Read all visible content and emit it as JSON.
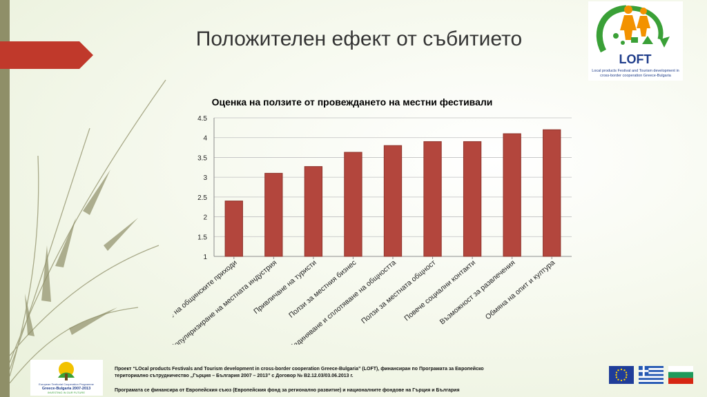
{
  "slide": {
    "title": "Положителен ефект от събитието"
  },
  "logo": {
    "name": "LOFT",
    "caption": "Local products Festival and Tourism development in cross-border cooperation Greece-Bulgaria"
  },
  "colors": {
    "accent": "#c0392b",
    "bar_fill": "#b3463d",
    "bar_stroke": "#8e342c",
    "strip": "#8f8f68"
  },
  "chart_data": {
    "type": "bar",
    "title": "Оценка на ползите от провеждането на местни фестивали",
    "categories": [
      "Увеличаване на общинските приходи",
      "Популяризиране на местната индустрия",
      "Привличане на туристи",
      "Ползи за местния бизнес",
      "Обединяване и сплотяване на общността",
      "Ползи за местната общност",
      "Повече социални контакти",
      "Възможност за развлечения",
      "Обмяна на опит и култура"
    ],
    "values": [
      2.4,
      3.1,
      3.27,
      3.63,
      3.8,
      3.9,
      3.9,
      4.1,
      4.2
    ],
    "ylim": [
      1,
      4.5
    ],
    "yticks": [
      "1",
      "1.5",
      "2",
      "2.5",
      "3",
      "3.5",
      "4",
      "4.5"
    ],
    "grid": true,
    "xlabel": "",
    "ylabel": ""
  },
  "footer": {
    "programme_logo_lines": [
      "European Territorial Cooperation Programme",
      "Greece-Bulgaria 2007-2013",
      "INVESTING IN OUR FUTURE"
    ],
    "line1": "Проект “LOcal products Festivals and Tourism development in cross-border cooperation Greece-Bulgaria” (LOFT), финансиран по Програмата за Европейско",
    "line2": "териториално сътрудничество „Гърция – България 2007 – 2013” с Договор № B2.12.03/03.06.2013 г.",
    "line3": "Програмата се финансира от Европейския съюз (Европейския фонд за регионално развитие) и националните фондове на Гърция и България"
  },
  "flags": [
    "eu-flag-icon",
    "greece-flag-icon",
    "bulgaria-flag-icon"
  ]
}
